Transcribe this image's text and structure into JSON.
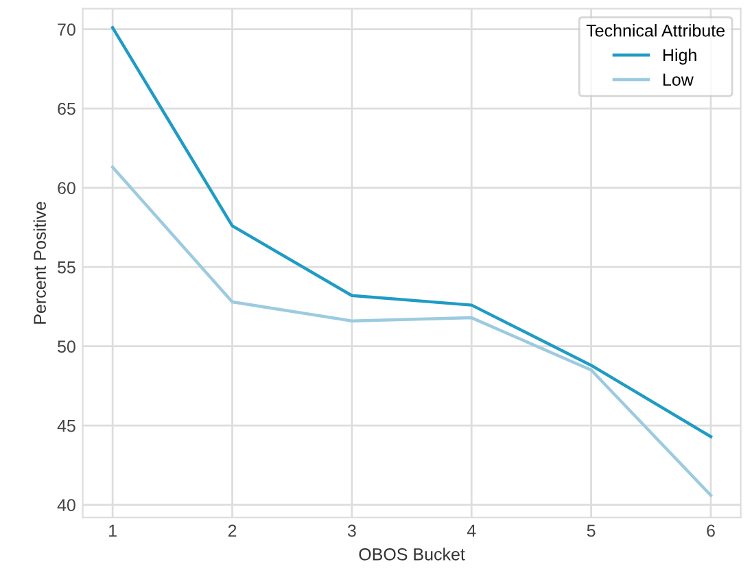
{
  "chart_data": {
    "type": "line",
    "xlabel": "OBOS Bucket",
    "ylabel": "Percent Positive",
    "legend_title": "Technical Attribute",
    "x": [
      1,
      2,
      3,
      4,
      5,
      6
    ],
    "series": [
      {
        "name": "High",
        "color": "#1f9bc4",
        "values": [
          70.1,
          57.6,
          53.2,
          52.6,
          48.8,
          44.3
        ]
      },
      {
        "name": "Low",
        "color": "#9ccbe0",
        "values": [
          61.3,
          52.8,
          51.6,
          51.8,
          48.5,
          40.6
        ]
      }
    ],
    "xlim": [
      0.75,
      6.25
    ],
    "ylim": [
      39.2,
      71.3
    ],
    "xticks": [
      1,
      2,
      3,
      4,
      5,
      6
    ],
    "yticks": [
      40,
      45,
      50,
      55,
      60,
      65,
      70
    ],
    "grid": true,
    "legend": "top right",
    "marker": "none",
    "line_style": "solid"
  }
}
